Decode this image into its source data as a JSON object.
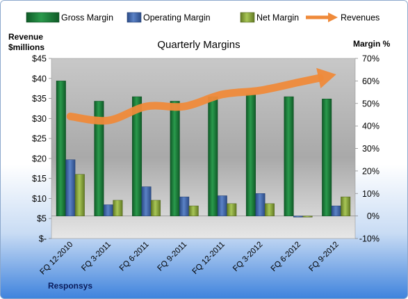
{
  "chart_data": {
    "type": "bar",
    "title": "Quarterly Margins",
    "footer_label": "Responsys",
    "y_left_label_line1": "Revenue",
    "y_left_label_line2": "$millions",
    "y_right_label": "Margin %",
    "y_left_range": [
      0,
      45
    ],
    "y_left_ticks": [
      "$-",
      "$5",
      "$10",
      "$15",
      "$20",
      "$25",
      "$30",
      "$35",
      "$40",
      "$45"
    ],
    "y_right_range": [
      -10,
      70
    ],
    "y_right_ticks": [
      "-10%",
      "0%",
      "10%",
      "20%",
      "30%",
      "40%",
      "50%",
      "60%",
      "70%"
    ],
    "categories": [
      "FQ 12-2010",
      "FQ 3-2011",
      "FQ 6-2011",
      "FQ 9-2011",
      "FQ 12-2011",
      "FQ 3-2012",
      "FQ 6-2012",
      "FQ 9-2012"
    ],
    "series": [
      {
        "name": "Gross Margin",
        "axis": "right",
        "color": "#1e7a3a",
        "values": [
          60,
          51,
          53,
          51,
          53,
          54,
          53,
          52
        ]
      },
      {
        "name": "Operating Margin",
        "axis": "right",
        "color": "#3f63a5",
        "values": [
          25,
          5,
          13,
          8.5,
          9,
          10,
          -0.5,
          4.5
        ]
      },
      {
        "name": "Net Margin",
        "axis": "right",
        "color": "#8aab3c",
        "values": [
          18.5,
          7,
          7,
          4.5,
          5.5,
          5.5,
          -0.5,
          8.5
        ]
      },
      {
        "name": "Revenues",
        "axis": "left",
        "type": "line",
        "color": "#ef8a3a",
        "values": [
          30.5,
          29.5,
          33,
          33,
          36,
          37,
          39,
          41
        ]
      }
    ],
    "legend_position": "top",
    "grid": false
  }
}
